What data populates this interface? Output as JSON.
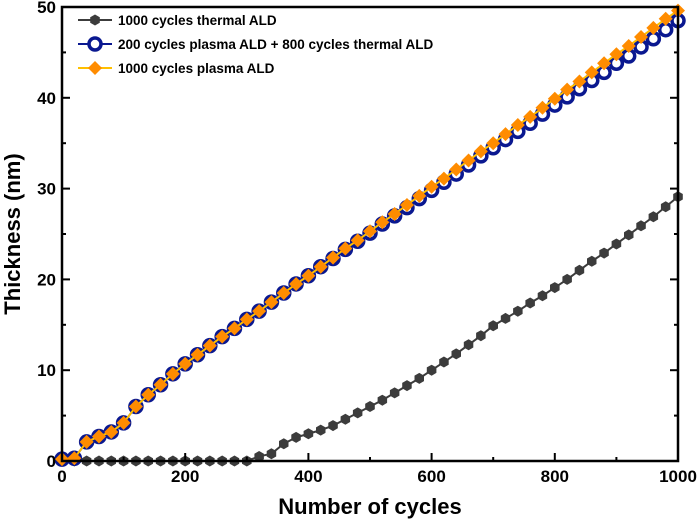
{
  "chart_data": {
    "type": "line",
    "title": "",
    "xlabel": "Number of cycles",
    "ylabel": "Thickness (nm)",
    "xlim": [
      0,
      1000
    ],
    "ylim": [
      0,
      50
    ],
    "xticks": [
      0,
      200,
      400,
      600,
      800,
      1000
    ],
    "yticks": [
      0,
      10,
      20,
      30,
      40,
      50
    ],
    "grid": false,
    "legend_position": "top-left",
    "x": [
      0,
      20,
      40,
      60,
      80,
      100,
      120,
      140,
      160,
      180,
      200,
      220,
      240,
      260,
      280,
      300,
      320,
      340,
      360,
      380,
      400,
      420,
      440,
      460,
      480,
      500,
      520,
      540,
      560,
      580,
      600,
      620,
      640,
      660,
      680,
      700,
      720,
      740,
      760,
      780,
      800,
      820,
      840,
      860,
      880,
      900,
      920,
      940,
      960,
      980,
      1000
    ],
    "series": [
      {
        "name": "1000 cycles thermal ALD",
        "color": "#3c3c3c",
        "marker": "hexagon",
        "values": [
          0,
          0,
          0,
          0,
          0,
          0,
          0,
          0,
          0,
          0,
          0,
          0,
          0,
          0,
          0,
          0,
          0.5,
          0.8,
          1.9,
          2.6,
          3.0,
          3.4,
          3.9,
          4.6,
          5.3,
          6.0,
          6.7,
          7.5,
          8.3,
          9.1,
          10.0,
          10.9,
          11.8,
          12.8,
          13.8,
          14.9,
          15.7,
          16.5,
          17.4,
          18.2,
          19.1,
          20.0,
          21.0,
          22.0,
          22.9,
          23.9,
          24.9,
          25.9,
          26.9,
          28.0,
          29.1
        ]
      },
      {
        "name": "200 cycles plasma ALD + 800 cycles thermal ALD",
        "color": "#0a1890",
        "marker": "open-circle",
        "values": [
          0.2,
          0.3,
          2.1,
          2.7,
          3.2,
          4.2,
          6.0,
          7.3,
          8.4,
          9.6,
          10.7,
          11.7,
          12.7,
          13.7,
          14.6,
          15.6,
          16.5,
          17.5,
          18.5,
          19.5,
          20.4,
          21.4,
          22.3,
          23.3,
          24.2,
          25.1,
          26.1,
          27.0,
          27.9,
          28.9,
          29.8,
          30.7,
          31.6,
          32.6,
          33.6,
          34.5,
          35.4,
          36.3,
          37.2,
          38.2,
          39.2,
          40.1,
          41.0,
          41.9,
          42.8,
          43.8,
          44.6,
          45.6,
          46.5,
          47.5,
          48.5
        ]
      },
      {
        "name": "1000 cycles plasma ALD",
        "color": "#ff8c00",
        "line_color": "#ffc000",
        "marker": "diamond",
        "values": [
          0.2,
          0.3,
          2.1,
          2.7,
          3.2,
          4.2,
          6.0,
          7.3,
          8.4,
          9.6,
          10.7,
          11.7,
          12.7,
          13.7,
          14.6,
          15.6,
          16.5,
          17.5,
          18.5,
          19.5,
          20.4,
          21.4,
          22.4,
          23.4,
          24.3,
          25.3,
          26.3,
          27.2,
          28.2,
          29.2,
          30.2,
          31.1,
          32.1,
          33.1,
          34.1,
          35.0,
          36.0,
          37.0,
          37.9,
          38.9,
          39.9,
          40.9,
          41.8,
          42.8,
          43.8,
          44.8,
          45.7,
          46.7,
          47.7,
          48.7,
          49.6
        ]
      }
    ]
  }
}
